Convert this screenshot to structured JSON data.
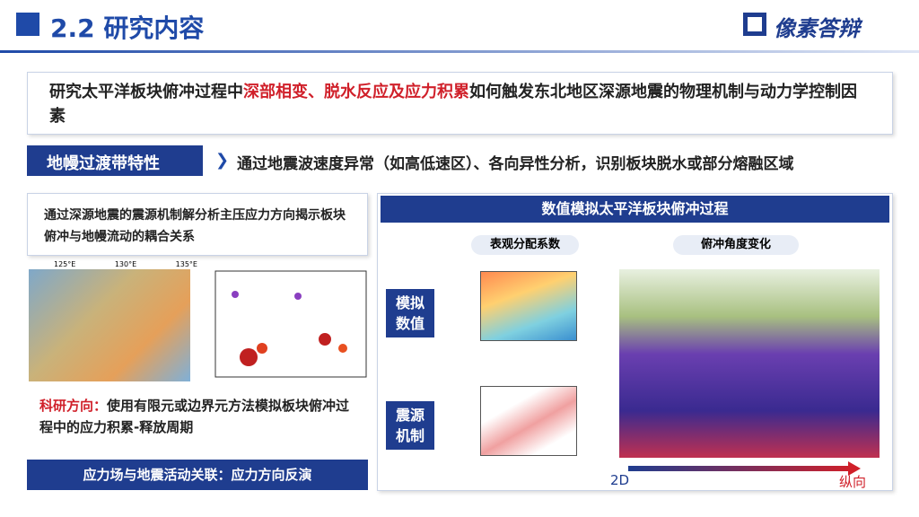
{
  "header": {
    "title": "2.2 研究内容",
    "logo": "像素答辩"
  },
  "intro": {
    "lead": "研究太平洋板块俯冲过程中",
    "highlight": "深部相变、脱水反应及应力积累",
    "rest": "如何触发东北地区深源地震的物理机制与动力学控制因素"
  },
  "feature": {
    "label": "地幔过渡带特性",
    "text": "通过地震波速度异常（如高低速区）、各向异性分析，识别板块脱水或部分熔融区域"
  },
  "left": {
    "note": "通过深源地震的震源机制解分析主压应力方向揭示板块俯冲与地幔流动的耦合关系",
    "map_labels": [
      "125°E",
      "130°E",
      "135°E"
    ],
    "direction_label": "科研方向：",
    "direction_text": "使用有限元或边界元方法模拟板块俯冲过程中的应力积累-释放周期",
    "banner": "应力场与地震活动关联：应力方向反演"
  },
  "right": {
    "title": "数值模拟太平洋板块俯冲过程",
    "tags": [
      "表观分配系数",
      "俯冲角度变化"
    ],
    "side_labels": [
      "模拟数值",
      "震源机制"
    ],
    "axis_start": "2D",
    "axis_end": "纵向"
  }
}
